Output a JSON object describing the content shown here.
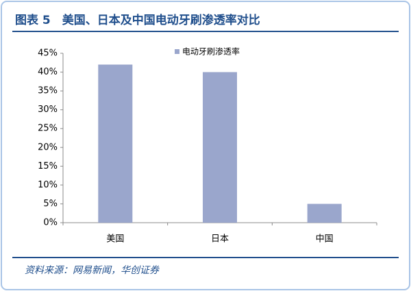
{
  "chart_data": {
    "type": "bar",
    "title": "图表 5　美国、日本及中国电动牙刷渗透率对比",
    "source": "资料来源：网易新闻，华创证券",
    "categories": [
      "美国",
      "日本",
      "中国"
    ],
    "series": [
      {
        "name": "电动牙刷渗透率",
        "color": "#9aa6cc",
        "values": [
          42,
          40,
          5
        ]
      }
    ],
    "ylim": [
      0,
      45
    ],
    "yticks": [
      {
        "value": 0,
        "label": "0%"
      },
      {
        "value": 5,
        "label": "5%"
      },
      {
        "value": 10,
        "label": "10%"
      },
      {
        "value": 15,
        "label": "15%"
      },
      {
        "value": 20,
        "label": "20%"
      },
      {
        "value": 25,
        "label": "25%"
      },
      {
        "value": 30,
        "label": "30%"
      },
      {
        "value": 35,
        "label": "35%"
      },
      {
        "value": 40,
        "label": "40%"
      },
      {
        "value": 45,
        "label": "45%"
      }
    ],
    "legend": "top"
  }
}
